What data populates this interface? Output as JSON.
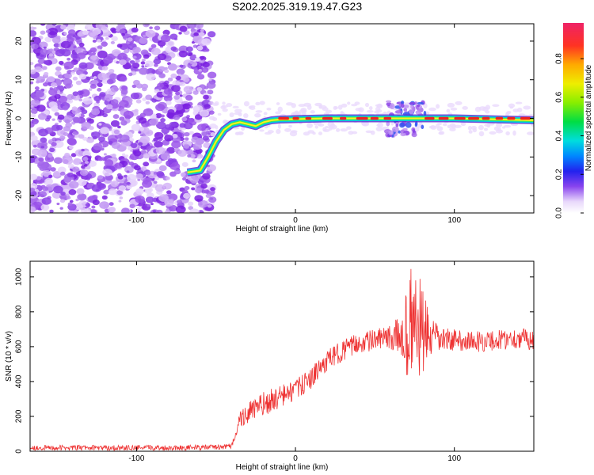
{
  "title": "S202.2025.319.19.47.G23",
  "chart_data": [
    {
      "type": "heatmap",
      "title": "S202.2025.319.19.47.G23",
      "xlabel": "Height of straight line (km)",
      "ylabel": "Frequency (Hz)",
      "xlim": [
        -167,
        150
      ],
      "ylim": [
        -24.5,
        24.5
      ],
      "xticks": [
        -100,
        0,
        100
      ],
      "yticks": [
        -20,
        -10,
        0,
        10,
        20
      ],
      "colorbar": {
        "label": "Normalized spectral amplitude",
        "range": [
          0,
          1
        ],
        "ticks": [
          "0.0",
          "0.2",
          "0.4",
          "0.6",
          "0.8"
        ]
      },
      "trace": {
        "description_points_x": [
          -167,
          -68,
          -60,
          -55,
          -50,
          -45,
          -40,
          -35,
          -30,
          -25,
          -20,
          -15,
          -10,
          0,
          20,
          50,
          70,
          100,
          150
        ],
        "frequency_y": [
          -14,
          -14,
          -13.5,
          -10,
          -6,
          -3,
          -1.5,
          -1,
          -1.5,
          -2,
          -1,
          -0.5,
          -0.3,
          -0.2,
          0,
          0,
          0,
          0,
          -0.5
        ]
      }
    },
    {
      "type": "line",
      "xlabel": "Height of straight line (km)",
      "ylabel": "SNR (10 * v/v)",
      "xlim": [
        -167,
        150
      ],
      "ylim": [
        0,
        1090
      ],
      "xticks": [
        -100,
        0,
        100
      ],
      "yticks": [
        0,
        200,
        400,
        600,
        800,
        1000
      ],
      "series": [
        {
          "name": "SNR",
          "color": "#ee3333",
          "x": [
            -167,
            -140,
            -120,
            -100,
            -80,
            -60,
            -45,
            -40,
            -38,
            -35,
            -30,
            -20,
            -10,
            0,
            10,
            20,
            30,
            40,
            50,
            60,
            65,
            70,
            73,
            75,
            78,
            80,
            85,
            90,
            100,
            110,
            120,
            130,
            140,
            150
          ],
          "y": [
            20,
            20,
            20,
            20,
            20,
            22,
            25,
            30,
            100,
            180,
            220,
            270,
            310,
            350,
            420,
            520,
            580,
            620,
            640,
            650,
            660,
            680,
            700,
            720,
            700,
            680,
            650,
            640,
            640,
            630,
            630,
            640,
            650,
            640
          ],
          "noise_amplitude": [
            15,
            15,
            15,
            15,
            15,
            15,
            15,
            15,
            30,
            60,
            60,
            70,
            70,
            60,
            60,
            60,
            60,
            60,
            60,
            70,
            120,
            250,
            380,
            400,
            350,
            250,
            120,
            80,
            60,
            60,
            60,
            60,
            60,
            60
          ]
        }
      ]
    }
  ]
}
